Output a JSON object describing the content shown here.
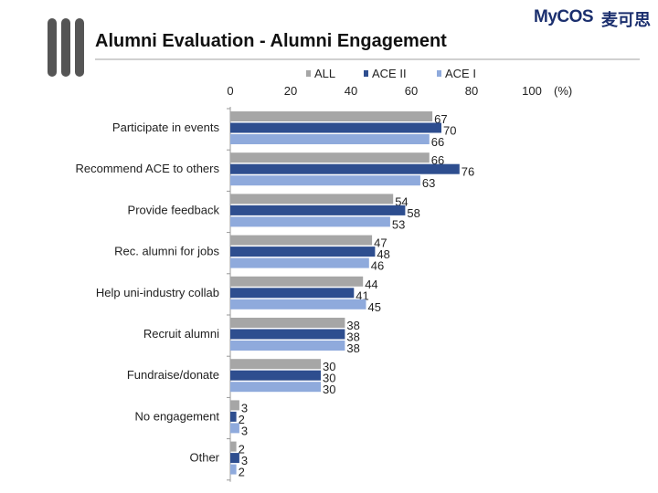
{
  "header": {
    "title": "Alumni Evaluation - Alumni Engagement",
    "logo_text": "MyCOS",
    "logo_cn": "麦可思"
  },
  "colors": {
    "ALL": "#a6a6a6",
    "ACE II": "#2e4e8f",
    "ACE I": "#8faadc",
    "deco": "#555555"
  },
  "chart_data": {
    "type": "bar",
    "orientation": "horizontal",
    "title": "Alumni Evaluation - Alumni Engagement",
    "unit_label": "(%)",
    "xlim": [
      0,
      100
    ],
    "x_ticks": [
      0,
      20,
      40,
      60,
      80,
      100
    ],
    "legend_position": "top",
    "categories": [
      "Participate in events",
      "Recommend ACE to others",
      "Provide feedback",
      "Rec. alumni for jobs",
      "Help uni-industry collab",
      "Recruit alumni",
      "Fundraise/donate",
      "No engagement",
      "Other"
    ],
    "series": [
      {
        "name": "ALL",
        "values": [
          67,
          66,
          54,
          47,
          44,
          38,
          30,
          3,
          2
        ]
      },
      {
        "name": "ACE II",
        "values": [
          70,
          76,
          58,
          48,
          41,
          38,
          30,
          2,
          3
        ]
      },
      {
        "name": "ACE I",
        "values": [
          66,
          63,
          53,
          46,
          45,
          38,
          30,
          3,
          2
        ]
      }
    ]
  }
}
